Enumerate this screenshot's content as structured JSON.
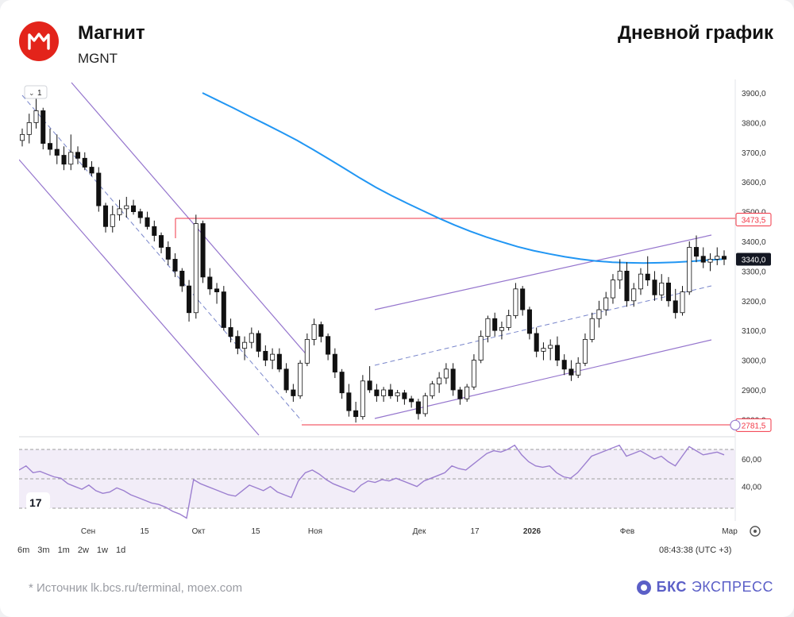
{
  "header": {
    "company": "Магнит",
    "ticker": "MGNT",
    "chart_title": "Дневной график"
  },
  "toolbar": {
    "series_toggle": "1",
    "ranges": [
      "6m",
      "3m",
      "1m",
      "2w",
      "1w",
      "1d"
    ],
    "time": "08:43:38 (UTC +3)"
  },
  "footer": {
    "source": "*   Источник lk.bcs.ru/terminal, moex.com",
    "brand_bold": "БКС",
    "brand_rest": "ЭКСПРЕСС"
  },
  "colors": {
    "up": "#ffffff",
    "down": "#111111",
    "ma": "#2196f3",
    "channel": "#9575cd",
    "level": "#f23645",
    "rsi": "#9c7fd0",
    "brand": "#5b5fc7",
    "logo": "#e3241b"
  },
  "chart_data": {
    "type": "candlestick",
    "y_ticks": [
      "3900,0",
      "3800,0",
      "3700,0",
      "3600,0",
      "3500,0",
      "3400,0",
      "3300,0",
      "3200,0",
      "3100,0",
      "3000,0",
      "2900,0",
      "2800,0"
    ],
    "ylim": [
      2750,
      3950
    ],
    "x_ticks": [
      "Сен",
      "15",
      "Окт",
      "15",
      "Ноя",
      "Дек",
      "17",
      "2026",
      "Фев",
      "Мар"
    ],
    "levels": [
      {
        "label": "3473,5",
        "value": 3473.5
      },
      {
        "label": "2781,5",
        "value": 2781.5
      }
    ],
    "last_price": {
      "label": "3340,0",
      "value": 3340.0
    },
    "candles": [
      [
        3740,
        3780,
        3720,
        3760
      ],
      [
        3760,
        3830,
        3730,
        3800
      ],
      [
        3800,
        3880,
        3780,
        3840
      ],
      [
        3840,
        3850,
        3710,
        3730
      ],
      [
        3730,
        3780,
        3690,
        3710
      ],
      [
        3710,
        3760,
        3660,
        3690
      ],
      [
        3690,
        3720,
        3640,
        3660
      ],
      [
        3660,
        3760,
        3640,
        3700
      ],
      [
        3700,
        3720,
        3660,
        3680
      ],
      [
        3680,
        3700,
        3640,
        3650
      ],
      [
        3650,
        3670,
        3620,
        3630
      ],
      [
        3630,
        3650,
        3500,
        3520
      ],
      [
        3520,
        3530,
        3430,
        3450
      ],
      [
        3450,
        3520,
        3430,
        3490
      ],
      [
        3490,
        3540,
        3470,
        3510
      ],
      [
        3510,
        3550,
        3480,
        3520
      ],
      [
        3520,
        3540,
        3490,
        3500
      ],
      [
        3500,
        3510,
        3460,
        3480
      ],
      [
        3480,
        3500,
        3440,
        3450
      ],
      [
        3450,
        3470,
        3400,
        3420
      ],
      [
        3420,
        3430,
        3360,
        3380
      ],
      [
        3380,
        3400,
        3320,
        3340
      ],
      [
        3340,
        3360,
        3280,
        3300
      ],
      [
        3300,
        3310,
        3230,
        3250
      ],
      [
        3250,
        3270,
        3130,
        3160
      ],
      [
        3160,
        3490,
        3140,
        3460
      ],
      [
        3460,
        3470,
        3260,
        3280
      ],
      [
        3280,
        3310,
        3220,
        3240
      ],
      [
        3240,
        3260,
        3190,
        3230
      ],
      [
        3230,
        3250,
        3100,
        3110
      ],
      [
        3110,
        3140,
        3060,
        3080
      ],
      [
        3080,
        3100,
        3020,
        3040
      ],
      [
        3040,
        3080,
        3000,
        3060
      ],
      [
        3060,
        3110,
        3040,
        3090
      ],
      [
        3090,
        3100,
        3010,
        3030
      ],
      [
        3030,
        3050,
        2980,
        3000
      ],
      [
        3000,
        3040,
        2970,
        3020
      ],
      [
        3020,
        3040,
        2960,
        2970
      ],
      [
        2970,
        2990,
        2890,
        2900
      ],
      [
        2900,
        2920,
        2860,
        2880
      ],
      [
        2880,
        3000,
        2870,
        2990
      ],
      [
        2990,
        3090,
        2980,
        3070
      ],
      [
        3070,
        3140,
        3050,
        3120
      ],
      [
        3120,
        3130,
        3060,
        3080
      ],
      [
        3080,
        3090,
        3000,
        3020
      ],
      [
        3020,
        3040,
        2940,
        2960
      ],
      [
        2960,
        2970,
        2870,
        2890
      ],
      [
        2890,
        2920,
        2810,
        2830
      ],
      [
        2830,
        2860,
        2790,
        2810
      ],
      [
        2810,
        2950,
        2800,
        2930
      ],
      [
        2930,
        2980,
        2890,
        2900
      ],
      [
        2900,
        2920,
        2860,
        2880
      ],
      [
        2880,
        2910,
        2860,
        2900
      ],
      [
        2900,
        2920,
        2870,
        2880
      ],
      [
        2880,
        2900,
        2860,
        2890
      ],
      [
        2890,
        2900,
        2850,
        2870
      ],
      [
        2870,
        2880,
        2840,
        2860
      ],
      [
        2860,
        2870,
        2800,
        2820
      ],
      [
        2820,
        2890,
        2810,
        2880
      ],
      [
        2880,
        2930,
        2870,
        2920
      ],
      [
        2920,
        2960,
        2890,
        2940
      ],
      [
        2940,
        2990,
        2920,
        2970
      ],
      [
        2970,
        2990,
        2880,
        2900
      ],
      [
        2900,
        2910,
        2850,
        2870
      ],
      [
        2870,
        2920,
        2860,
        2910
      ],
      [
        2910,
        3020,
        2900,
        3000
      ],
      [
        3000,
        3100,
        2990,
        3080
      ],
      [
        3080,
        3150,
        3060,
        3140
      ],
      [
        3140,
        3160,
        3080,
        3100
      ],
      [
        3100,
        3130,
        3070,
        3110
      ],
      [
        3110,
        3170,
        3100,
        3150
      ],
      [
        3150,
        3260,
        3140,
        3240
      ],
      [
        3240,
        3250,
        3150,
        3170
      ],
      [
        3170,
        3180,
        3070,
        3090
      ],
      [
        3090,
        3110,
        3010,
        3030
      ],
      [
        3030,
        3060,
        3000,
        3040
      ],
      [
        3040,
        3070,
        3000,
        3050
      ],
      [
        3050,
        3080,
        2980,
        3000
      ],
      [
        3000,
        3020,
        2950,
        2970
      ],
      [
        2970,
        3000,
        2930,
        2950
      ],
      [
        2950,
        3010,
        2940,
        2990
      ],
      [
        2990,
        3090,
        2980,
        3070
      ],
      [
        3070,
        3160,
        3060,
        3140
      ],
      [
        3140,
        3200,
        3110,
        3170
      ],
      [
        3170,
        3230,
        3150,
        3210
      ],
      [
        3210,
        3290,
        3190,
        3270
      ],
      [
        3270,
        3340,
        3240,
        3300
      ],
      [
        3300,
        3330,
        3180,
        3200
      ],
      [
        3200,
        3260,
        3180,
        3240
      ],
      [
        3240,
        3310,
        3220,
        3290
      ],
      [
        3290,
        3350,
        3250,
        3270
      ],
      [
        3270,
        3300,
        3200,
        3220
      ],
      [
        3220,
        3290,
        3200,
        3260
      ],
      [
        3260,
        3280,
        3180,
        3200
      ],
      [
        3200,
        3240,
        3140,
        3160
      ],
      [
        3160,
        3250,
        3150,
        3230
      ],
      [
        3230,
        3400,
        3220,
        3380
      ],
      [
        3380,
        3420,
        3330,
        3350
      ],
      [
        3350,
        3380,
        3310,
        3330
      ],
      [
        3330,
        3360,
        3300,
        3340
      ],
      [
        3340,
        3380,
        3320,
        3350
      ],
      [
        3350,
        3370,
        3320,
        3340
      ]
    ],
    "ma": [
      3900,
      3874,
      3848,
      3821,
      3795,
      3768,
      3740,
      3710,
      3678,
      3646,
      3613,
      3582,
      3554,
      3528,
      3503,
      3478,
      3455,
      3434,
      3415,
      3398,
      3382,
      3369,
      3358,
      3348,
      3340,
      3334,
      3330,
      3328,
      3327,
      3328,
      3330,
      3333,
      3337,
      3340
    ],
    "rsi_ticks": [
      "60,00",
      "40,00"
    ],
    "rsi_ylim": [
      15,
      75
    ],
    "rsi_band": [
      30,
      70
    ],
    "rsi": [
      52,
      55,
      50,
      51,
      49,
      47,
      46,
      42,
      40,
      38,
      41,
      37,
      35,
      36,
      39,
      37,
      34,
      32,
      30,
      28,
      27,
      25,
      22,
      20,
      17,
      45,
      42,
      40,
      38,
      36,
      34,
      33,
      37,
      41,
      39,
      37,
      40,
      36,
      34,
      32,
      44,
      50,
      52,
      49,
      45,
      42,
      40,
      38,
      36,
      41,
      44,
      43,
      45,
      44,
      46,
      44,
      42,
      40,
      44,
      46,
      48,
      50,
      55,
      53,
      52,
      56,
      60,
      64,
      66,
      65,
      67,
      70,
      63,
      58,
      55,
      54,
      55,
      50,
      47,
      46,
      50,
      56,
      62,
      64,
      66,
      68,
      70,
      62,
      64,
      66,
      63,
      60,
      62,
      58,
      55,
      62,
      69,
      66,
      63,
      64,
      65,
      63
    ]
  }
}
